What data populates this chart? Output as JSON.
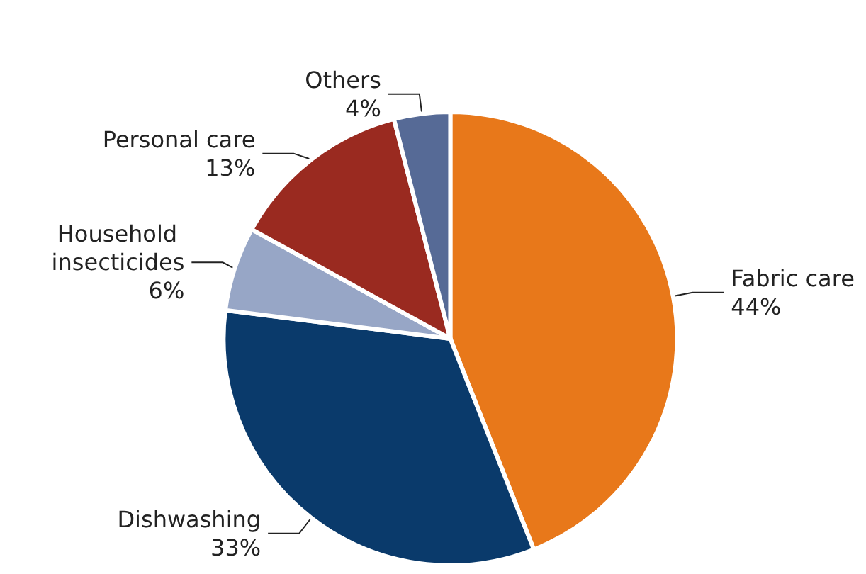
{
  "chart_data": {
    "type": "pie",
    "categories": [
      "Fabric care",
      "Dishwashing",
      "Household insecticides",
      "Personal care",
      "Others"
    ],
    "values": [
      44,
      33,
      6,
      13,
      4
    ],
    "value_labels": [
      "44%",
      "33%",
      "6%",
      "13%",
      "4%"
    ],
    "colors": [
      "#e8781a",
      "#0a3a6b",
      "#97a6c6",
      "#9a2a20",
      "#566a96"
    ],
    "legend": false
  }
}
